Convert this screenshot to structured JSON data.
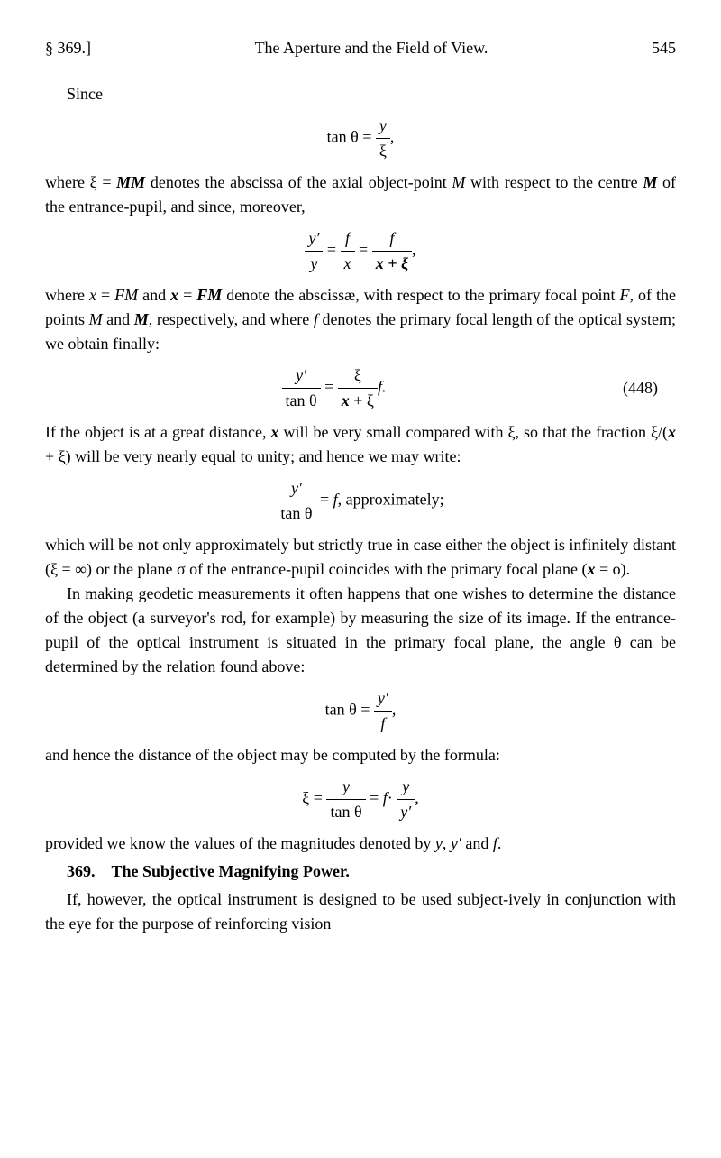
{
  "header": {
    "section_ref": "§ 369.]",
    "title": "The Aperture and the Field of View.",
    "page_num": "545"
  },
  "since_label": "Since",
  "formula1": {
    "lhs": "tan θ",
    "eq": "=",
    "num": "y",
    "den": "ξ",
    "tail": ","
  },
  "para1": {
    "pre": "where ξ = ",
    "MM": "MM",
    "mid1": " denotes the abscissa of the axial object-point ",
    "M_it": "M",
    "mid2": " with respect to the centre ",
    "M_bi": "M",
    "tail": " of the entrance-pupil, and since, moreover,"
  },
  "formula2": {
    "n1": "y′",
    "d1": "y",
    "eq1": "=",
    "n2": "f",
    "d2": "x",
    "eq2": "=",
    "n3": "f",
    "d3": "x + ξ",
    "tail": ","
  },
  "para2": {
    "t1": "where ",
    "x_it": "x",
    "t2": " = ",
    "FM_it": "FM",
    "t3": " and ",
    "x_bi": "x",
    "t4": " = ",
    "FM_bi": "FM",
    "t5": " denote the abscissæ, with respect to the primary focal point ",
    "F_it": "F",
    "t6": ", of the points ",
    "M_it": "M",
    "t7": " and ",
    "M_bi": "M",
    "t8": ", respectively, and where ",
    "f_it": "f",
    "t9": " denotes the primary focal length of the optical system; we obtain finally:"
  },
  "formula3": {
    "n1": "y′",
    "d1": "tan θ",
    "eq1": "=",
    "n2": "ξ",
    "d2_a": "x",
    "d2_b": " + ξ",
    "ftail": "f.",
    "eq_num": "(448)"
  },
  "para3": {
    "t1": "If the object is at a great distance, ",
    "x_bi": "x",
    "t2": " will be very small compared with ξ, so that the fraction ξ/(",
    "x_bi2": "x",
    "t3": " + ξ) will be very nearly equal to unity; and hence we may write:"
  },
  "formula4": {
    "num": "y′",
    "den": "tan θ",
    "eq": "= ",
    "f_it": "f",
    "tail": ", approximately;"
  },
  "para4": {
    "t1": "which will be not only approximately but strictly true in case either the object is infinitely distant (ξ = ∞) or the plane σ of the entrance-pupil coincides with the primary focal plane (",
    "x_bi": "x",
    "t2": " = o)."
  },
  "para5": "In making geodetic measurements it often happens that one wishes to determine the distance of the object (a surveyor's rod, for example) by measuring the size of its image. If the entrance-pupil of the optical instrument is situated in the primary focal plane, the angle θ can be determined by the relation found above:",
  "formula5": {
    "lhs": "tan θ",
    "eq": "=",
    "num": "y′",
    "den": "f",
    "tail": ","
  },
  "para6": "and hence the distance of the object may be computed by the formula:",
  "formula6": {
    "lhs": "ξ =",
    "n1": "y",
    "d1": "tan θ",
    "eq1": "=",
    "f_it": "f",
    "dot": "·",
    "n2": "y",
    "d2": "y′",
    "tail": ","
  },
  "para7": {
    "t1": "provided we know the values of the magnitudes denoted by ",
    "y_it": "y",
    "t2": ", ",
    "yp_it": "y′",
    "t3": " and ",
    "f_it": "f",
    "t4": "."
  },
  "sec369": {
    "num": "369.",
    "title": "The Subjective Magnifying Power."
  },
  "para8": "If, however, the optical instrument is designed to be used subject-ively in conjunction with the eye for the purpose of reinforcing vision"
}
